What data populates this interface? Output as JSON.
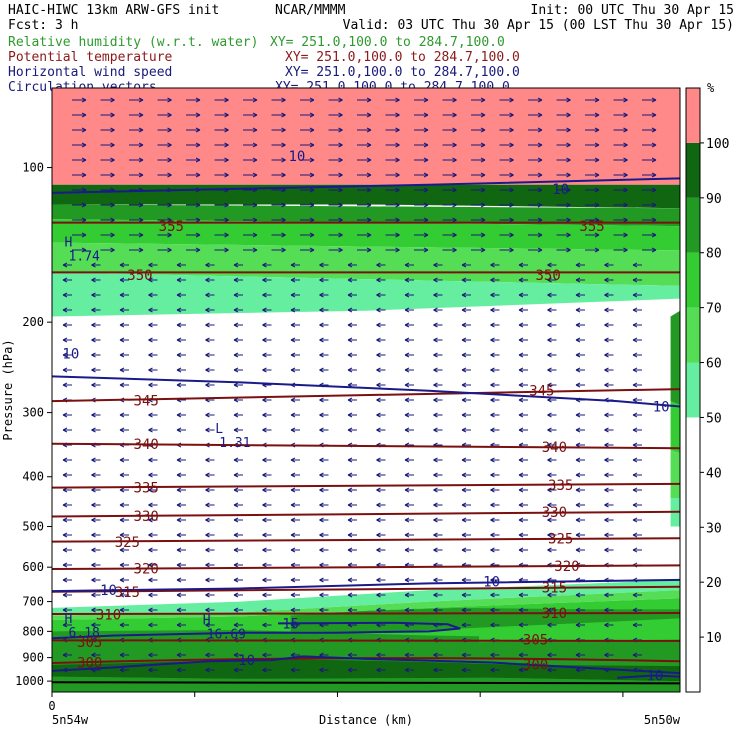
{
  "header": {
    "line1_left": "HAIC-HIWC 13km ARW-GFS init",
    "line1_mid": "NCAR/MMMM",
    "line1_right": "Init: 00 UTC Thu 30 Apr 15",
    "line2_left": "Fcst:    3 h",
    "line2_right": "Valid: 03 UTC Thu 30 Apr 15 (00 LST Thu 30 Apr 15)",
    "fields": [
      {
        "label": "Relative humidity (w.r.t. water)",
        "xy": "XY= 251.0,100.0 to 284.7,100.0",
        "color": "#2e9a2e"
      },
      {
        "label": "Potential temperature",
        "xy": "XY= 251.0,100.0 to 284.7,100.0",
        "color": "#8b1a1a"
      },
      {
        "label": "Horizontal wind speed",
        "xy": "XY= 251.0,100.0 to 284.7,100.0",
        "color": "#1a1a7a"
      },
      {
        "label": "Circulation vectors",
        "xy": "XY= 251.0,100.0 to 284.7,100.0",
        "color": "#1a1a7a"
      }
    ]
  },
  "chart_data": {
    "type": "heatmap",
    "ylabel": "Pressure (hPa)",
    "xlabel": "Distance (km)",
    "x_start_tick": "0",
    "x_left_label": "5n54w",
    "x_right_label": "5n50w",
    "y_ticks": [
      100,
      200,
      300,
      400,
      500,
      600,
      700,
      800,
      900,
      1000
    ],
    "ylim": [
      1050,
      70
    ],
    "colorbar": {
      "unit": "%",
      "ticks": [
        10,
        20,
        30,
        40,
        50,
        60,
        70,
        80,
        90,
        100
      ],
      "bins": [
        {
          "from": 0,
          "to": 50,
          "color": "#ffffff"
        },
        {
          "from": 50,
          "to": 60,
          "color": "#66eea0"
        },
        {
          "from": 60,
          "to": 70,
          "color": "#55dd55"
        },
        {
          "from": 70,
          "to": 80,
          "color": "#33cc33"
        },
        {
          "from": 80,
          "to": 90,
          "color": "#229922"
        },
        {
          "from": 90,
          "to": 100,
          "color": "#116611"
        },
        {
          "from": 100,
          "to": 110,
          "color": "#ff8888"
        }
      ]
    },
    "theta_contours": [
      {
        "value": "300",
        "p_left": 922,
        "p_right": 915
      },
      {
        "value": "305",
        "p_left": 833,
        "p_right": 835
      },
      {
        "value": "310",
        "p_left": 740,
        "p_right": 737
      },
      {
        "value": "315",
        "p_left": 670,
        "p_right": 655
      },
      {
        "value": "320",
        "p_left": 605,
        "p_right": 595
      },
      {
        "value": "325",
        "p_left": 535,
        "p_right": 527
      },
      {
        "value": "330",
        "p_left": 478,
        "p_right": 468
      },
      {
        "value": "335",
        "p_left": 420,
        "p_right": 413
      },
      {
        "value": "340",
        "p_left": 345,
        "p_right": 352
      },
      {
        "value": "345",
        "p_left": 285,
        "p_right": 270
      },
      {
        "value": "350",
        "p_left": 160,
        "p_right": 160
      },
      {
        "value": "355",
        "p_left": 128,
        "p_right": 128
      }
    ],
    "theta_labels": [
      {
        "text": "355",
        "p": 130,
        "xfrac": 0.19
      },
      {
        "text": "355",
        "p": 130,
        "xfrac": 0.86
      },
      {
        "text": "350",
        "p": 162,
        "xfrac": 0.14
      },
      {
        "text": "350",
        "p": 162,
        "xfrac": 0.79
      },
      {
        "text": "345",
        "p": 284,
        "xfrac": 0.15
      },
      {
        "text": "345",
        "p": 272,
        "xfrac": 0.78
      },
      {
        "text": "340",
        "p": 345,
        "xfrac": 0.15
      },
      {
        "text": "340",
        "p": 350,
        "xfrac": 0.8
      },
      {
        "text": "335",
        "p": 420,
        "xfrac": 0.15
      },
      {
        "text": "335",
        "p": 415,
        "xfrac": 0.81
      },
      {
        "text": "330",
        "p": 477,
        "xfrac": 0.15
      },
      {
        "text": "330",
        "p": 468,
        "xfrac": 0.8
      },
      {
        "text": "325",
        "p": 536,
        "xfrac": 0.12
      },
      {
        "text": "325",
        "p": 528,
        "xfrac": 0.81
      },
      {
        "text": "320",
        "p": 604,
        "xfrac": 0.15
      },
      {
        "text": "320",
        "p": 597,
        "xfrac": 0.82
      },
      {
        "text": "315",
        "p": 670,
        "xfrac": 0.12
      },
      {
        "text": "315",
        "p": 657,
        "xfrac": 0.8
      },
      {
        "text": "310",
        "p": 742,
        "xfrac": 0.09
      },
      {
        "text": "310",
        "p": 737,
        "xfrac": 0.8
      },
      {
        "text": "305",
        "p": 840,
        "xfrac": 0.06
      },
      {
        "text": "305",
        "p": 830,
        "xfrac": 0.77
      },
      {
        "text": "300",
        "p": 920,
        "xfrac": 0.06
      },
      {
        "text": "300",
        "p": 928,
        "xfrac": 0.77
      }
    ],
    "wind_labels": [
      {
        "text": "10",
        "p": 110,
        "xfrac": 0.81
      },
      {
        "text": "10",
        "p": 230,
        "xfrac": 0.03
      },
      {
        "text": "10",
        "p": 292,
        "xfrac": 0.97
      },
      {
        "text": "10",
        "p": 640,
        "xfrac": 0.7
      },
      {
        "text": "10",
        "p": 665,
        "xfrac": 0.09
      },
      {
        "text": "15",
        "p": 772,
        "xfrac": 0.38
      },
      {
        "text": "10",
        "p": 910,
        "xfrac": 0.31
      },
      {
        "text": "10",
        "p": 975,
        "xfrac": 0.96
      },
      {
        "text": "10",
        "p": 95,
        "xfrac": 0.39
      }
    ],
    "extrema": [
      {
        "mark": "H",
        "value": "1.74",
        "p": 145,
        "xfrac": 0.02
      },
      {
        "mark": "L",
        "value": "1.31",
        "p": 335,
        "xfrac": 0.26
      },
      {
        "mark": "H",
        "value": "6.18",
        "p": 785,
        "xfrac": 0.02
      },
      {
        "mark": "H",
        "value": "16.69",
        "p": 790,
        "xfrac": 0.24
      }
    ],
    "grid": false,
    "legend": "right colorbar"
  }
}
